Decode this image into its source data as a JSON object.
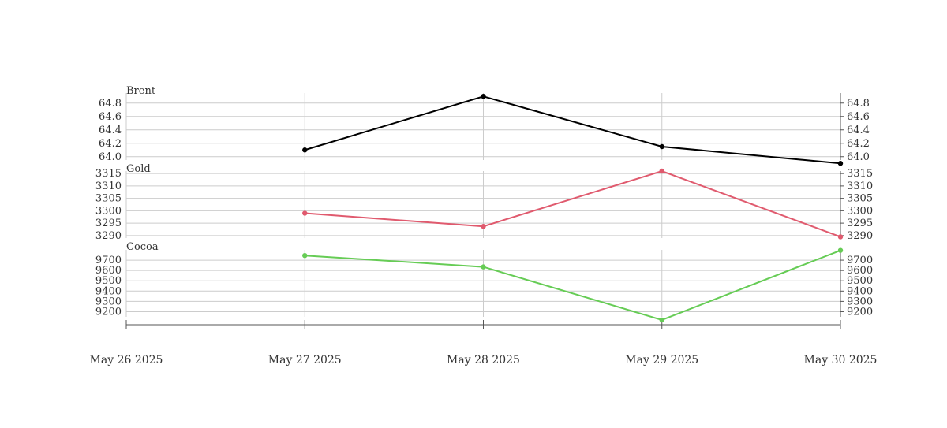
{
  "chart_data": {
    "type": "line",
    "x": [
      "May 26 2025",
      "May 27 2025",
      "May 28 2025",
      "May 29 2025",
      "May 30 2025"
    ],
    "grid": true,
    "panels": [
      {
        "title": "Brent",
        "color": "#000000",
        "ylim": [
          63.95,
          64.95
        ],
        "yticks": [
          "64.0",
          "64.2",
          "64.4",
          "64.6",
          "64.8"
        ],
        "points": [
          {
            "x": "May 27 2025",
            "y": 64.1
          },
          {
            "x": "May 28 2025",
            "y": 64.9
          },
          {
            "x": "May 29 2025",
            "y": 64.15
          },
          {
            "x": "May 30 2025",
            "y": 63.9
          }
        ]
      },
      {
        "title": "Gold",
        "color": "#e05a6e",
        "ylim": [
          3289,
          3316
        ],
        "yticks": [
          "3290",
          "3295",
          "3300",
          "3305",
          "3310",
          "3315"
        ],
        "points": [
          {
            "x": "May 27 2025",
            "y": 3299
          },
          {
            "x": "May 28 2025",
            "y": 3293.7
          },
          {
            "x": "May 29 2025",
            "y": 3316
          },
          {
            "x": "May 30 2025",
            "y": 3289.5
          }
        ]
      },
      {
        "title": "Cocoa",
        "color": "#66cc55",
        "ylim": [
          9150,
          9800
        ],
        "yticks": [
          "9200",
          "9300",
          "9400",
          "9500",
          "9600",
          "9700"
        ],
        "points": [
          {
            "x": "May 27 2025",
            "y": 9745
          },
          {
            "x": "May 28 2025",
            "y": 9635
          },
          {
            "x": "May 29 2025",
            "y": 9120
          },
          {
            "x": "May 30 2025",
            "y": 9795
          }
        ]
      }
    ]
  }
}
